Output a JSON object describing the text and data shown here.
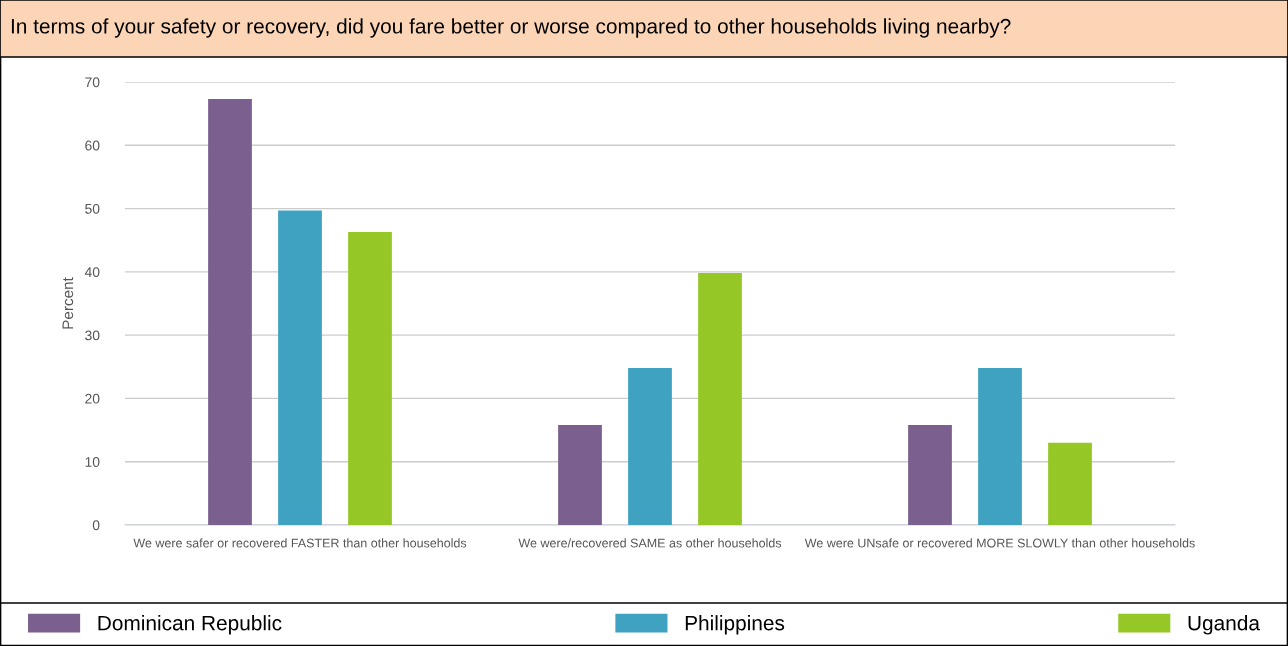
{
  "chart_data": {
    "type": "bar",
    "title": "In terms of your safety or recovery, did you fare better or worse compared to other households living nearby?",
    "ylabel": "Percent",
    "categories": [
      "We were safer or recovered FASTER than other households",
      "We were/recovered SAME as other households",
      "We were UNsafe or recovered MORE SLOWLY than other households"
    ],
    "series": [
      {
        "name": "Dominican Republic",
        "color": "#7b5f8e",
        "values": [
          67.3,
          15.8,
          15.8
        ]
      },
      {
        "name": "Philippines",
        "color": "#3fa2c1",
        "values": [
          49.7,
          24.8,
          24.8
        ]
      },
      {
        "name": "Uganda",
        "color": "#95c726",
        "values": [
          46.3,
          39.8,
          13.0
        ]
      }
    ],
    "ylim": [
      0,
      70
    ],
    "yticks": [
      0,
      10,
      20,
      30,
      40,
      50,
      60,
      70
    ],
    "grid": "y",
    "legend": "bottom"
  }
}
